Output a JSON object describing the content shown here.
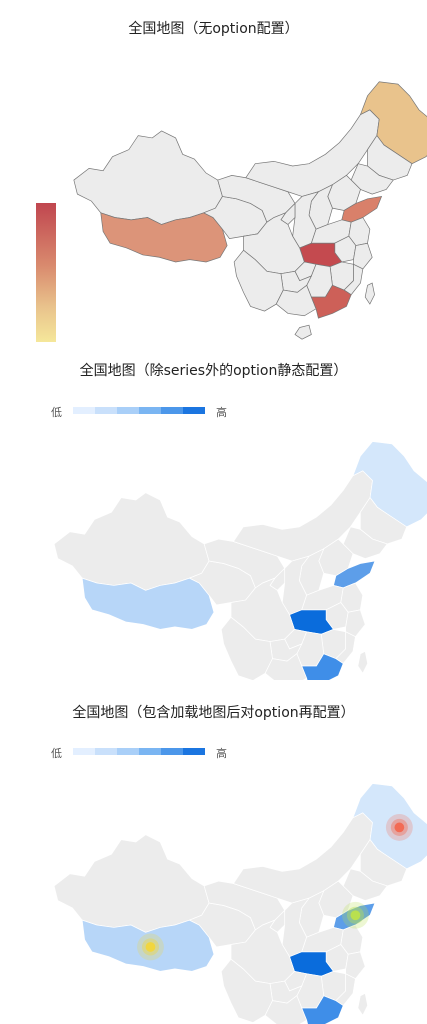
{
  "panels": [
    {
      "title": "全国地图（无option配置）",
      "visualmap": "continuous"
    },
    {
      "title": "全国地图（除series外的option静态配置）",
      "visualmap": "piecewise",
      "low_label": "低",
      "high_label": "高"
    },
    {
      "title": "全国地图（包含加载地图后对option再配置）",
      "visualmap": "piecewise",
      "low_label": "低",
      "high_label": "高"
    }
  ],
  "colors": {
    "default_region": "#ececec",
    "border_panel1": "#777777",
    "border_panel23": "#ffffff",
    "panel1_scale": [
      "#c0464f",
      "#d98a6e",
      "#e9c38c",
      "#f5e79a"
    ],
    "blue_scale": [
      "#e3efff",
      "#c9e0fb",
      "#a9cff8",
      "#7ab5f2",
      "#4c97ea",
      "#1b75e0"
    ],
    "effect_points": [
      "#f26b55",
      "#f1d63f",
      "#b9e04f"
    ]
  },
  "highlighted_regions": {
    "panel1": [
      {
        "region": "heilongjiang",
        "color": "#e9c38c"
      },
      {
        "region": "tibet",
        "color": "#dc9479"
      },
      {
        "region": "shandong",
        "color": "#d9806a"
      },
      {
        "region": "hubei",
        "color": "#c44a4f"
      },
      {
        "region": "guangdong",
        "color": "#cd6058"
      }
    ],
    "panel23": [
      {
        "region": "heilongjiang",
        "color": "#d4e7fb"
      },
      {
        "region": "tibet",
        "color": "#b7d6f8"
      },
      {
        "region": "shandong",
        "color": "#5d9ee9"
      },
      {
        "region": "hubei",
        "color": "#0a6cdc"
      },
      {
        "region": "guangdong",
        "color": "#3f8ee8"
      }
    ]
  },
  "effect_points": [
    {
      "region": "heilongjiang",
      "color": "#f26b55"
    },
    {
      "region": "tibet",
      "color": "#f1d63f"
    },
    {
      "region": "shandong",
      "color": "#b9e04f"
    }
  ]
}
